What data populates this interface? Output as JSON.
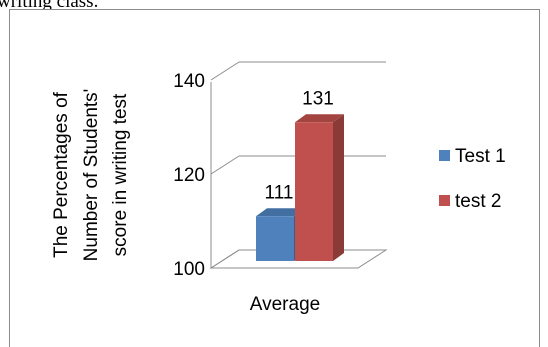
{
  "header": {
    "text": "writing class."
  },
  "chart_data": {
    "type": "bar",
    "title": "",
    "ylabel_lines": [
      "The Percentages of",
      "Number of Students'",
      "score in writing test"
    ],
    "xlabel": "",
    "categories": [
      "Average"
    ],
    "ylim": [
      100,
      140
    ],
    "yticks": [
      100,
      120,
      140
    ],
    "three_d": true,
    "grid": true,
    "legend_position": "right",
    "series": [
      {
        "name": "Test 1",
        "values": [
          111
        ],
        "color": "#4f81bd"
      },
      {
        "name": "test 2",
        "values": [
          131
        ],
        "color": "#c0504d"
      }
    ],
    "data_labels": [
      "111",
      "131"
    ]
  }
}
